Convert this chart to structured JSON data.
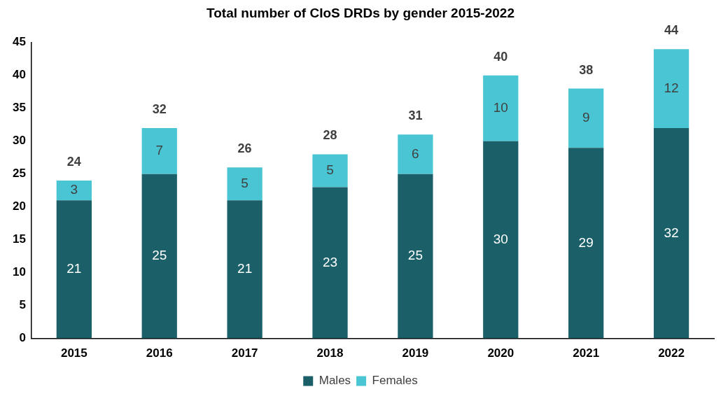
{
  "chart_data": {
    "type": "bar",
    "title": "Total number of CIoS DRDs by gender 2015-2022",
    "categories": [
      "2015",
      "2016",
      "2017",
      "2018",
      "2019",
      "2020",
      "2021",
      "2022"
    ],
    "stacked": true,
    "series": [
      {
        "name": "Males",
        "color": "#1b6069",
        "values": [
          21,
          25,
          21,
          23,
          25,
          30,
          29,
          32
        ]
      },
      {
        "name": "Females",
        "color": "#4ac5d4",
        "values": [
          3,
          7,
          5,
          5,
          6,
          10,
          9,
          12
        ]
      }
    ],
    "ylim": [
      0,
      45
    ],
    "yticks": [
      0,
      5,
      10,
      15,
      20,
      25,
      30,
      35,
      40,
      45
    ],
    "data_labels": true,
    "totals": [
      "24",
      "32",
      "26",
      "28",
      "31",
      "40",
      "38",
      "44"
    ],
    "grid": false,
    "legend": "bottom"
  }
}
